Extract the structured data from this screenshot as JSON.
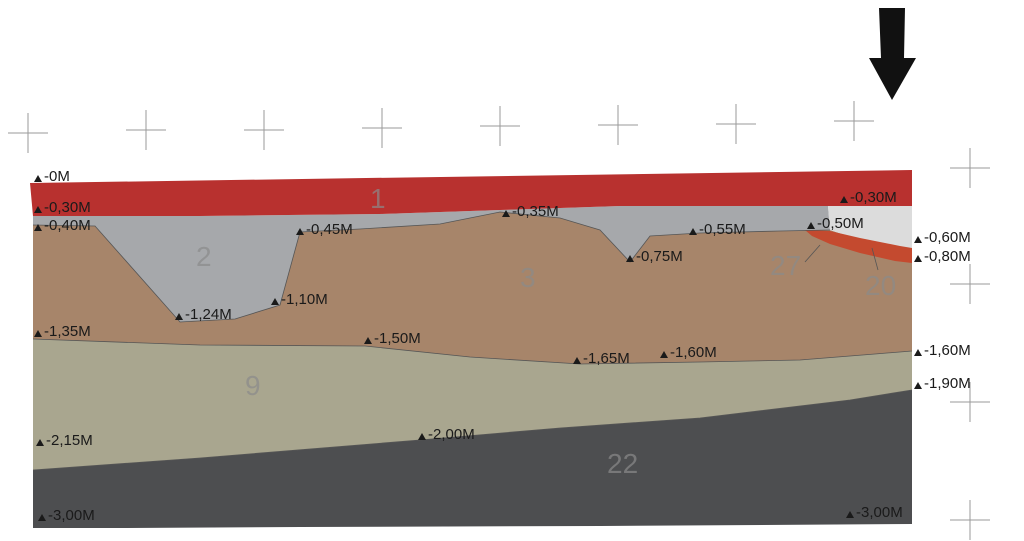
{
  "layers": [
    {
      "id": "layer-1",
      "number": "1",
      "color": "#b8312f"
    },
    {
      "id": "layer-2",
      "number": "2",
      "color": "#a6a8ab"
    },
    {
      "id": "layer-3",
      "number": "3",
      "color": "#a7856a"
    },
    {
      "id": "layer-9",
      "number": "9",
      "color": "#a9a68f"
    },
    {
      "id": "layer-22",
      "number": "22",
      "color": "#4d4e50"
    },
    {
      "id": "layer-27",
      "number": "27",
      "color": "#c44a2f"
    },
    {
      "id": "layer-20",
      "number": "20",
      "color": "#dcdcdc"
    }
  ],
  "elevations": [
    "-0M",
    "-0,30M",
    "-0,40M",
    "-0,45M",
    "-0,35M",
    "-0,55M",
    "-0,50M",
    "-0,30M",
    "-0,60M",
    "-0,80M",
    "-0,75M",
    "-1,24M",
    "-1,10M",
    "-1,35M",
    "-1,50M",
    "-1,65M",
    "-1,60M",
    "-1,60M",
    "-1,90M",
    "-2,15M",
    "-2,00M",
    "-3,00M",
    "-3,00M"
  ],
  "north_arrow_icon": "down-arrow-icon"
}
